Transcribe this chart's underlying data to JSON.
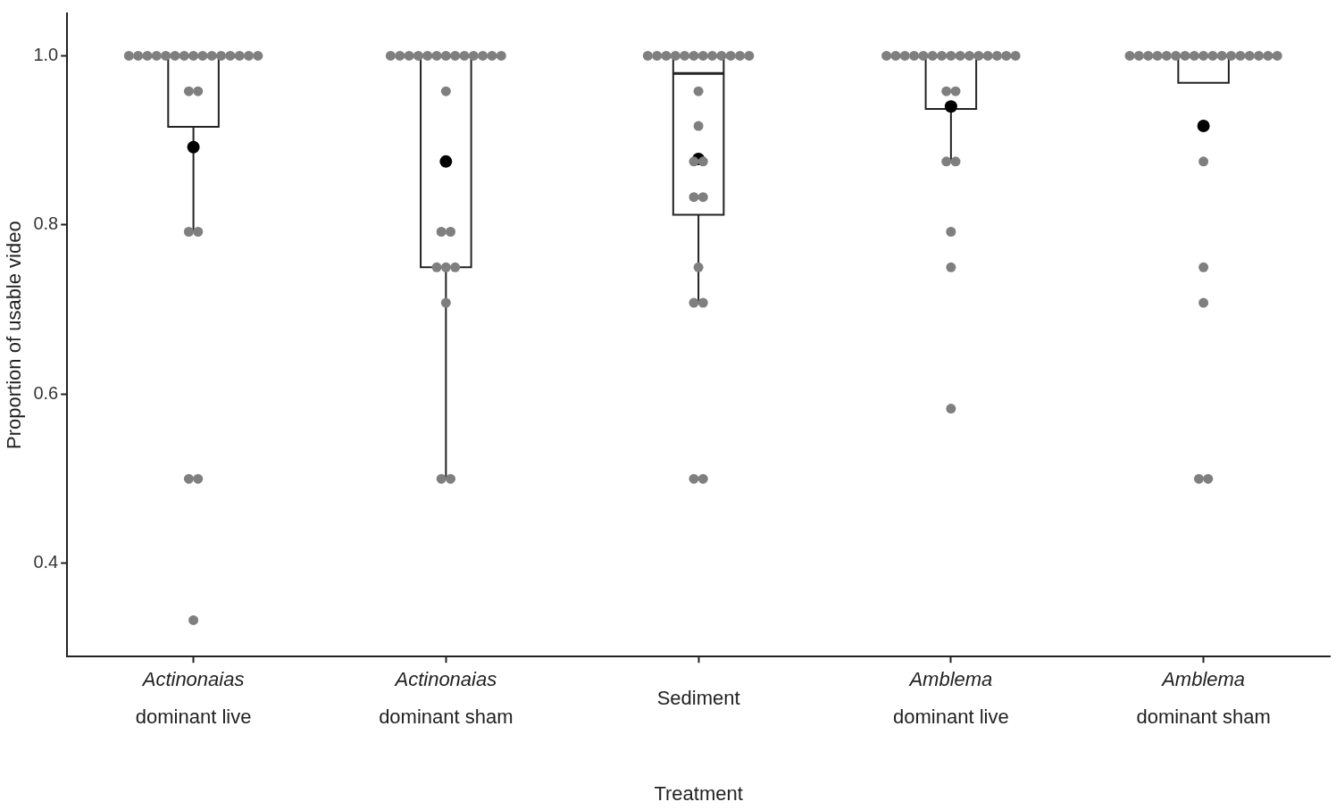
{
  "chart_data": {
    "type": "box",
    "xlabel": "Treatment",
    "ylabel": "Proportion of usable video",
    "categories": [
      "Actinonaias\ndominant live",
      "Actinonaias\ndominant sham",
      "Sediment",
      "Amblema\ndominant live",
      "Amblema\ndominant sham"
    ],
    "ylim": [
      0.29,
      1.05
    ],
    "yticks": [
      {
        "value": 0.4,
        "label": "0.4"
      },
      {
        "value": 0.6,
        "label": "0.6"
      },
      {
        "value": 0.8,
        "label": "0.8"
      },
      {
        "value": 1.0,
        "label": "1.0"
      }
    ],
    "grid": false,
    "legend": false,
    "boxes": [
      {
        "low": 0.792,
        "q1": 0.916,
        "median": 1.0,
        "q3": 1.0,
        "high": 1.0,
        "mean": 0.892
      },
      {
        "low": 0.5,
        "q1": 0.75,
        "median": 1.0,
        "q3": 1.0,
        "high": 1.0,
        "mean": 0.875
      },
      {
        "low": 0.708,
        "q1": 0.812,
        "median": 0.979,
        "q3": 1.0,
        "high": 1.0,
        "mean": 0.878
      },
      {
        "low": 0.875,
        "q1": 0.937,
        "median": 1.0,
        "q3": 1.0,
        "high": 1.0,
        "mean": 0.94
      },
      {
        "low": 0.968,
        "q1": 0.968,
        "median": 1.0,
        "q3": 1.0,
        "high": 1.0,
        "mean": 0.917
      }
    ],
    "series": [
      {
        "type": "scatter",
        "color": "#7f7f7f",
        "marker": "circle",
        "x": [
          "Actinonaias\ndominant live",
          "Actinonaias\ndominant live",
          "Actinonaias\ndominant live",
          "Actinonaias\ndominant live",
          "Actinonaias\ndominant live",
          "Actinonaias\ndominant live",
          "Actinonaias\ndominant live",
          "Actinonaias\ndominant live",
          "Actinonaias\ndominant live",
          "Actinonaias\ndominant live",
          "Actinonaias\ndominant live",
          "Actinonaias\ndominant live",
          "Actinonaias\ndominant live",
          "Actinonaias\ndominant live",
          "Actinonaias\ndominant live",
          "Actinonaias\ndominant live",
          "Actinonaias\ndominant live",
          "Actinonaias\ndominant live",
          "Actinonaias\ndominant live",
          "Actinonaias\ndominant live",
          "Actinonaias\ndominant live",
          "Actinonaias\ndominant live",
          "Actinonaias\ndominant sham",
          "Actinonaias\ndominant sham",
          "Actinonaias\ndominant sham",
          "Actinonaias\ndominant sham",
          "Actinonaias\ndominant sham",
          "Actinonaias\ndominant sham",
          "Actinonaias\ndominant sham",
          "Actinonaias\ndominant sham",
          "Actinonaias\ndominant sham",
          "Actinonaias\ndominant sham",
          "Actinonaias\ndominant sham",
          "Actinonaias\ndominant sham",
          "Actinonaias\ndominant sham",
          "Actinonaias\ndominant sham",
          "Actinonaias\ndominant sham",
          "Actinonaias\ndominant sham",
          "Actinonaias\ndominant sham",
          "Actinonaias\ndominant sham",
          "Actinonaias\ndominant sham",
          "Actinonaias\ndominant sham",
          "Actinonaias\ndominant sham",
          "Actinonaias\ndominant sham",
          "Sediment",
          "Sediment",
          "Sediment",
          "Sediment",
          "Sediment",
          "Sediment",
          "Sediment",
          "Sediment",
          "Sediment",
          "Sediment",
          "Sediment",
          "Sediment",
          "Sediment",
          "Sediment",
          "Sediment",
          "Sediment",
          "Sediment",
          "Sediment",
          "Sediment",
          "Sediment",
          "Sediment",
          "Sediment",
          "Sediment",
          "Amblema\ndominant live",
          "Amblema\ndominant live",
          "Amblema\ndominant live",
          "Amblema\ndominant live",
          "Amblema\ndominant live",
          "Amblema\ndominant live",
          "Amblema\ndominant live",
          "Amblema\ndominant live",
          "Amblema\ndominant live",
          "Amblema\ndominant live",
          "Amblema\ndominant live",
          "Amblema\ndominant live",
          "Amblema\ndominant live",
          "Amblema\ndominant live",
          "Amblema\ndominant live",
          "Amblema\ndominant live",
          "Amblema\ndominant live",
          "Amblema\ndominant live",
          "Amblema\ndominant live",
          "Amblema\ndominant live",
          "Amblema\ndominant live",
          "Amblema\ndominant live",
          "Amblema\ndominant sham",
          "Amblema\ndominant sham",
          "Amblema\ndominant sham",
          "Amblema\ndominant sham",
          "Amblema\ndominant sham",
          "Amblema\ndominant sham",
          "Amblema\ndominant sham",
          "Amblema\ndominant sham",
          "Amblema\ndominant sham",
          "Amblema\ndominant sham",
          "Amblema\ndominant sham",
          "Amblema\ndominant sham",
          "Amblema\ndominant sham",
          "Amblema\ndominant sham",
          "Amblema\ndominant sham",
          "Amblema\ndominant sham",
          "Amblema\ndominant sham",
          "Amblema\ndominant sham",
          "Amblema\ndominant sham",
          "Amblema\ndominant sham",
          "Amblema\ndominant sham",
          "Amblema\ndominant sham"
        ],
        "values": [
          1,
          1,
          1,
          1,
          1,
          1,
          1,
          1,
          1,
          1,
          1,
          1,
          1,
          1,
          1,
          0.958,
          0.958,
          0.792,
          0.792,
          0.5,
          0.5,
          0.333,
          1,
          1,
          1,
          1,
          1,
          1,
          1,
          1,
          1,
          1,
          1,
          1,
          1,
          0.958,
          0.792,
          0.792,
          0.75,
          0.75,
          0.75,
          0.708,
          0.5,
          0.5,
          1,
          1,
          1,
          1,
          1,
          1,
          1,
          1,
          1,
          1,
          1,
          0.958,
          0.917,
          0.875,
          0.875,
          0.833,
          0.833,
          0.75,
          0.708,
          0.708,
          0.5,
          0.5,
          1,
          1,
          1,
          1,
          1,
          1,
          1,
          1,
          1,
          1,
          1,
          1,
          1,
          1,
          1,
          1,
          0.958,
          0.958,
          0.875,
          0.875,
          0.792,
          0.75,
          0.583,
          1,
          1,
          1,
          1,
          1,
          1,
          1,
          1,
          1,
          1,
          1,
          1,
          1,
          1,
          1,
          1,
          1,
          0.875,
          0.75,
          0.708,
          0.5,
          0.5
        ]
      }
    ]
  }
}
